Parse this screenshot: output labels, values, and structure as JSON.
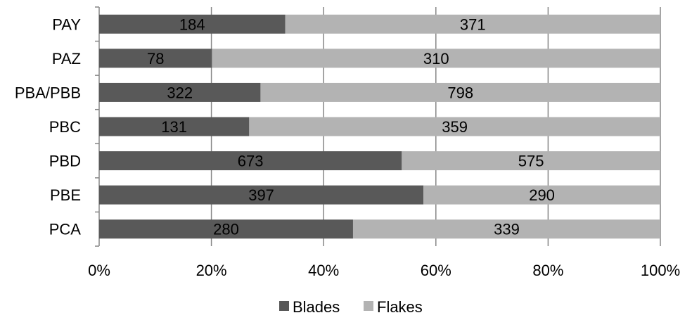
{
  "chart_data": {
    "type": "bar",
    "orientation": "horizontal",
    "stacking": "percent",
    "title": "",
    "xlabel": "",
    "ylabel": "",
    "categories": [
      "PAY",
      "PAZ",
      "PBA/PBB",
      "PBC",
      "PBD",
      "PBE",
      "PCA"
    ],
    "series": [
      {
        "name": "Blades",
        "values": [
          184,
          78,
          322,
          131,
          673,
          397,
          280
        ],
        "color": "#595959"
      },
      {
        "name": "Flakes",
        "values": [
          371,
          310,
          798,
          359,
          575,
          290,
          339
        ],
        "color": "#b3b3b3"
      }
    ],
    "xlim": [
      0,
      100
    ],
    "x_ticks": [
      "0%",
      "20%",
      "40%",
      "60%",
      "80%",
      "100%"
    ],
    "grid": "vertical",
    "legend_position": "bottom",
    "data_labels": true
  }
}
